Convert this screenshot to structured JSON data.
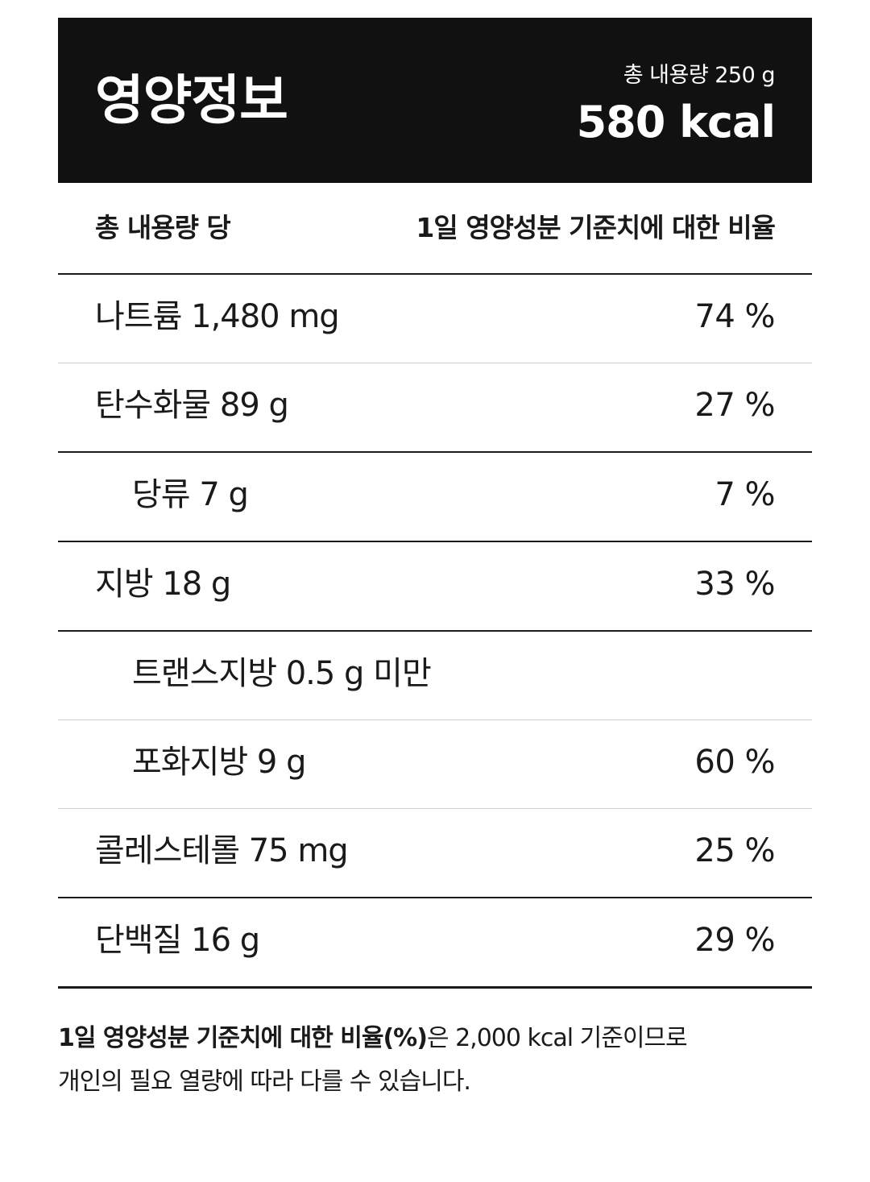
{
  "header": {
    "title": "영양정보",
    "total_amount": "총 내용량 250 g",
    "kcal": "580 kcal"
  },
  "columns": {
    "left": "총 내용량 당",
    "right": "1일 영양성분 기준치에 대한 비율"
  },
  "rows": [
    {
      "name": "나트륨 1,480 mg",
      "pct": "74 %"
    },
    {
      "name": "탄수화물 89 g",
      "pct": "27 %"
    },
    {
      "name": "당류 7 g",
      "pct": "7 %"
    },
    {
      "name": "지방 18 g",
      "pct": "33 %"
    },
    {
      "name": "트랜스지방 0.5 g 미만",
      "pct": ""
    },
    {
      "name": "포화지방 9 g",
      "pct": "60 %"
    },
    {
      "name": "콜레스테롤 75 mg",
      "pct": "25 %"
    },
    {
      "name": "단백질 16 g",
      "pct": "29 %"
    }
  ],
  "footnote": {
    "bold": "1일 영양성분 기준치에 대한 비율(%)",
    "line1_rest": "은 2,000 kcal 기준이므로",
    "line2": "개인의 필요 열량에 따라 다를 수 있습니다."
  }
}
